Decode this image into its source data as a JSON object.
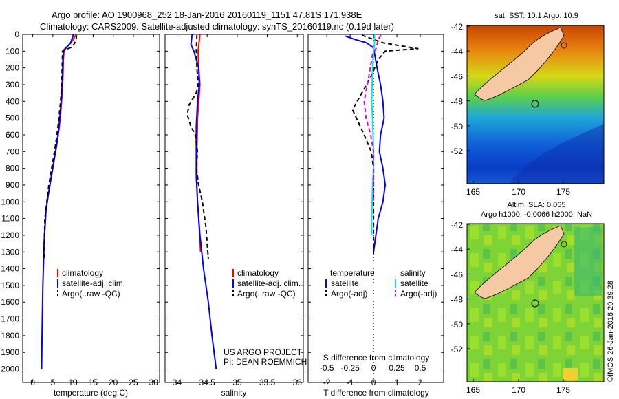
{
  "header": {
    "line1": "Argo profile: AO 1900968_252 18-Jan-2016 20160119_1151 47.81S 171.938E",
    "line2": "Climatology: CARS2009. Satellite-adjusted climatology: synTS_20160119.nc (0.19d later)"
  },
  "colors": {
    "climatology": "#ff0000",
    "satellite": "#0000ff",
    "argo": "#000000",
    "sal_satellite": "#00e5e5",
    "sal_argo": "#e000e0"
  },
  "footer": {
    "project": "US ARGO PROJECT",
    "pi": "PI: DEAN ROEMMICH",
    "copyright": "©IMOS 26-Jan-2016 20:39:28"
  },
  "legends": {
    "temp": [
      "climatology",
      "satellite-adj. clim.",
      "Argo(..raw -QC)"
    ],
    "sal": [
      "climatology",
      "satellite-adj. clim.",
      "Argo(..raw -QC)"
    ],
    "diff_titles": [
      "temperature",
      "salinity"
    ],
    "diff_temp": [
      "satellite",
      "Argo(-adj)"
    ],
    "diff_sal": [
      "satellite",
      "Argo(-adj)"
    ]
  },
  "maps": {
    "sst_title": "sat. SST: 10.1  Argo: 10.9",
    "sla_title1": "Altim. SLA: 0.065",
    "sla_title2": "Argo h1000: -0.0066 h2000: NaN",
    "lat_ticks": [
      "-42",
      "-44",
      "-46",
      "-48",
      "-50",
      "-52"
    ],
    "lon_ticks": [
      "165",
      "170",
      "175"
    ]
  },
  "chart_data": [
    {
      "type": "line",
      "name": "temperature profile",
      "xlabel": "temperature (deg C)",
      "ylabel": "",
      "xlim": [
        -2.5,
        31.5
      ],
      "ylim": [
        2080,
        0
      ],
      "xticks": [
        "0",
        "5",
        "10",
        "15",
        "20",
        "25",
        "30"
      ],
      "yticks": [
        "0",
        "100",
        "200",
        "300",
        "400",
        "500",
        "600",
        "700",
        "800",
        "900",
        "1000",
        "1100",
        "1200",
        "1300",
        "1400",
        "1500",
        "1600",
        "1700",
        "1800",
        "1900",
        "2000"
      ],
      "series": [
        {
          "name": "climatology",
          "x": [
            10.8,
            9.5,
            7.8,
            7.6,
            7.5,
            7.3,
            7.0,
            6.6,
            6.0,
            5.3,
            4.6,
            3.9,
            3.3,
            2.7
          ],
          "y": [
            0,
            50,
            90,
            150,
            250,
            350,
            450,
            550,
            650,
            750,
            850,
            950,
            1050,
            1300
          ]
        },
        {
          "name": "satellite-adj. clim.",
          "x": [
            10.1,
            9.4,
            7.6,
            7.5,
            7.4,
            7.2,
            6.9,
            6.5,
            6.0,
            5.3,
            4.6,
            3.9,
            3.3,
            2.9,
            2.5,
            2.3,
            2.2
          ],
          "y": [
            0,
            50,
            100,
            150,
            250,
            350,
            450,
            550,
            650,
            750,
            850,
            950,
            1050,
            1200,
            1500,
            1800,
            2000
          ]
        },
        {
          "name": "Argo(..raw -QC)",
          "x": [
            10.9,
            10.7,
            9.8,
            7.4,
            7.2,
            6.9,
            6.5,
            6.0,
            5.4,
            4.7,
            4.0,
            3.5,
            3.0,
            2.8
          ],
          "y": [
            5,
            40,
            75,
            100,
            300,
            400,
            500,
            600,
            700,
            800,
            900,
            1000,
            1100,
            1340
          ]
        }
      ]
    },
    {
      "type": "line",
      "name": "salinity profile",
      "xlabel": "salinity",
      "xlim": [
        33.8,
        36.1
      ],
      "ylim": [
        2080,
        0
      ],
      "xticks": [
        "34",
        "34.5",
        "35",
        "35.5",
        "36"
      ],
      "series": [
        {
          "name": "climatology",
          "x": [
            34.38,
            34.35,
            34.36,
            34.38,
            34.36,
            34.34,
            34.33,
            34.33,
            34.33,
            34.34,
            34.36,
            34.39
          ],
          "y": [
            0,
            100,
            200,
            300,
            400,
            500,
            700,
            800,
            900,
            1000,
            1100,
            1300
          ]
        },
        {
          "name": "satellite-adj. clim.",
          "x": [
            34.25,
            34.23,
            34.28,
            34.36,
            34.37,
            34.34,
            34.32,
            34.32,
            34.32,
            34.34,
            34.38,
            34.44,
            34.52,
            34.58,
            34.65
          ],
          "y": [
            0,
            60,
            100,
            200,
            300,
            400,
            550,
            700,
            850,
            1000,
            1200,
            1400,
            1600,
            1800,
            2000
          ]
        },
        {
          "name": "Argo(..raw -QC)",
          "x": [
            34.33,
            34.32,
            34.33,
            34.35,
            34.32,
            34.2,
            34.17,
            34.23,
            34.3,
            34.34,
            34.32,
            34.36,
            34.42,
            34.48,
            34.52
          ],
          "y": [
            5,
            100,
            200,
            300,
            350,
            420,
            480,
            550,
            600,
            700,
            800,
            900,
            1000,
            1150,
            1340
          ]
        }
      ]
    },
    {
      "type": "line",
      "name": "difference from climatology",
      "xlabel": "T difference from climatology",
      "xlabel_top": "S difference from climatology",
      "xlim": [
        -2.8,
        3.0
      ],
      "ylim": [
        2080,
        0
      ],
      "xticks": [
        "-2",
        "-1",
        "0",
        "1",
        "2"
      ],
      "sticks": [
        "-0.5",
        "-0.25",
        "0",
        "0.25",
        "0.5"
      ],
      "series": [
        {
          "name": "temperature satellite",
          "x": [
            -1.2,
            -0.8,
            -0.3,
            0.0,
            0.15,
            0.3,
            0.4,
            0.45,
            0.3,
            0.25,
            0.4,
            0.5,
            0.4,
            0.2,
            0.1,
            0.0
          ],
          "y": [
            10,
            30,
            50,
            80,
            200,
            300,
            400,
            500,
            600,
            700,
            800,
            900,
            1000,
            1100,
            1200,
            1300
          ]
        },
        {
          "name": "temperature Argo(-adj)",
          "x": [
            -0.5,
            0.4,
            1.9,
            0.5,
            0.2,
            -0.1,
            -0.5,
            -0.9,
            -0.4,
            -0.1,
            0.0,
            0.0,
            0.0
          ],
          "y": [
            5,
            50,
            85,
            100,
            150,
            250,
            350,
            450,
            600,
            700,
            800,
            1000,
            1330
          ]
        },
        {
          "name": "salinity satellite",
          "x": [
            0.01,
            0.01,
            0.0,
            -0.01,
            -0.02,
            -0.01,
            -0.005,
            0.0,
            0.0,
            -0.01,
            -0.02,
            -0.02
          ],
          "y": [
            0,
            60,
            100,
            200,
            400,
            500,
            600,
            700,
            800,
            900,
            1100,
            1200
          ]
        },
        {
          "name": "salinity Argo(-adj)",
          "x": [
            0.08,
            0.05,
            0.03,
            -0.01,
            -0.05,
            -0.1,
            -0.08,
            -0.03,
            0.0,
            0.0,
            0.0
          ],
          "y": [
            5,
            30,
            80,
            120,
            250,
            400,
            500,
            600,
            700,
            900,
            1000
          ]
        }
      ]
    }
  ]
}
